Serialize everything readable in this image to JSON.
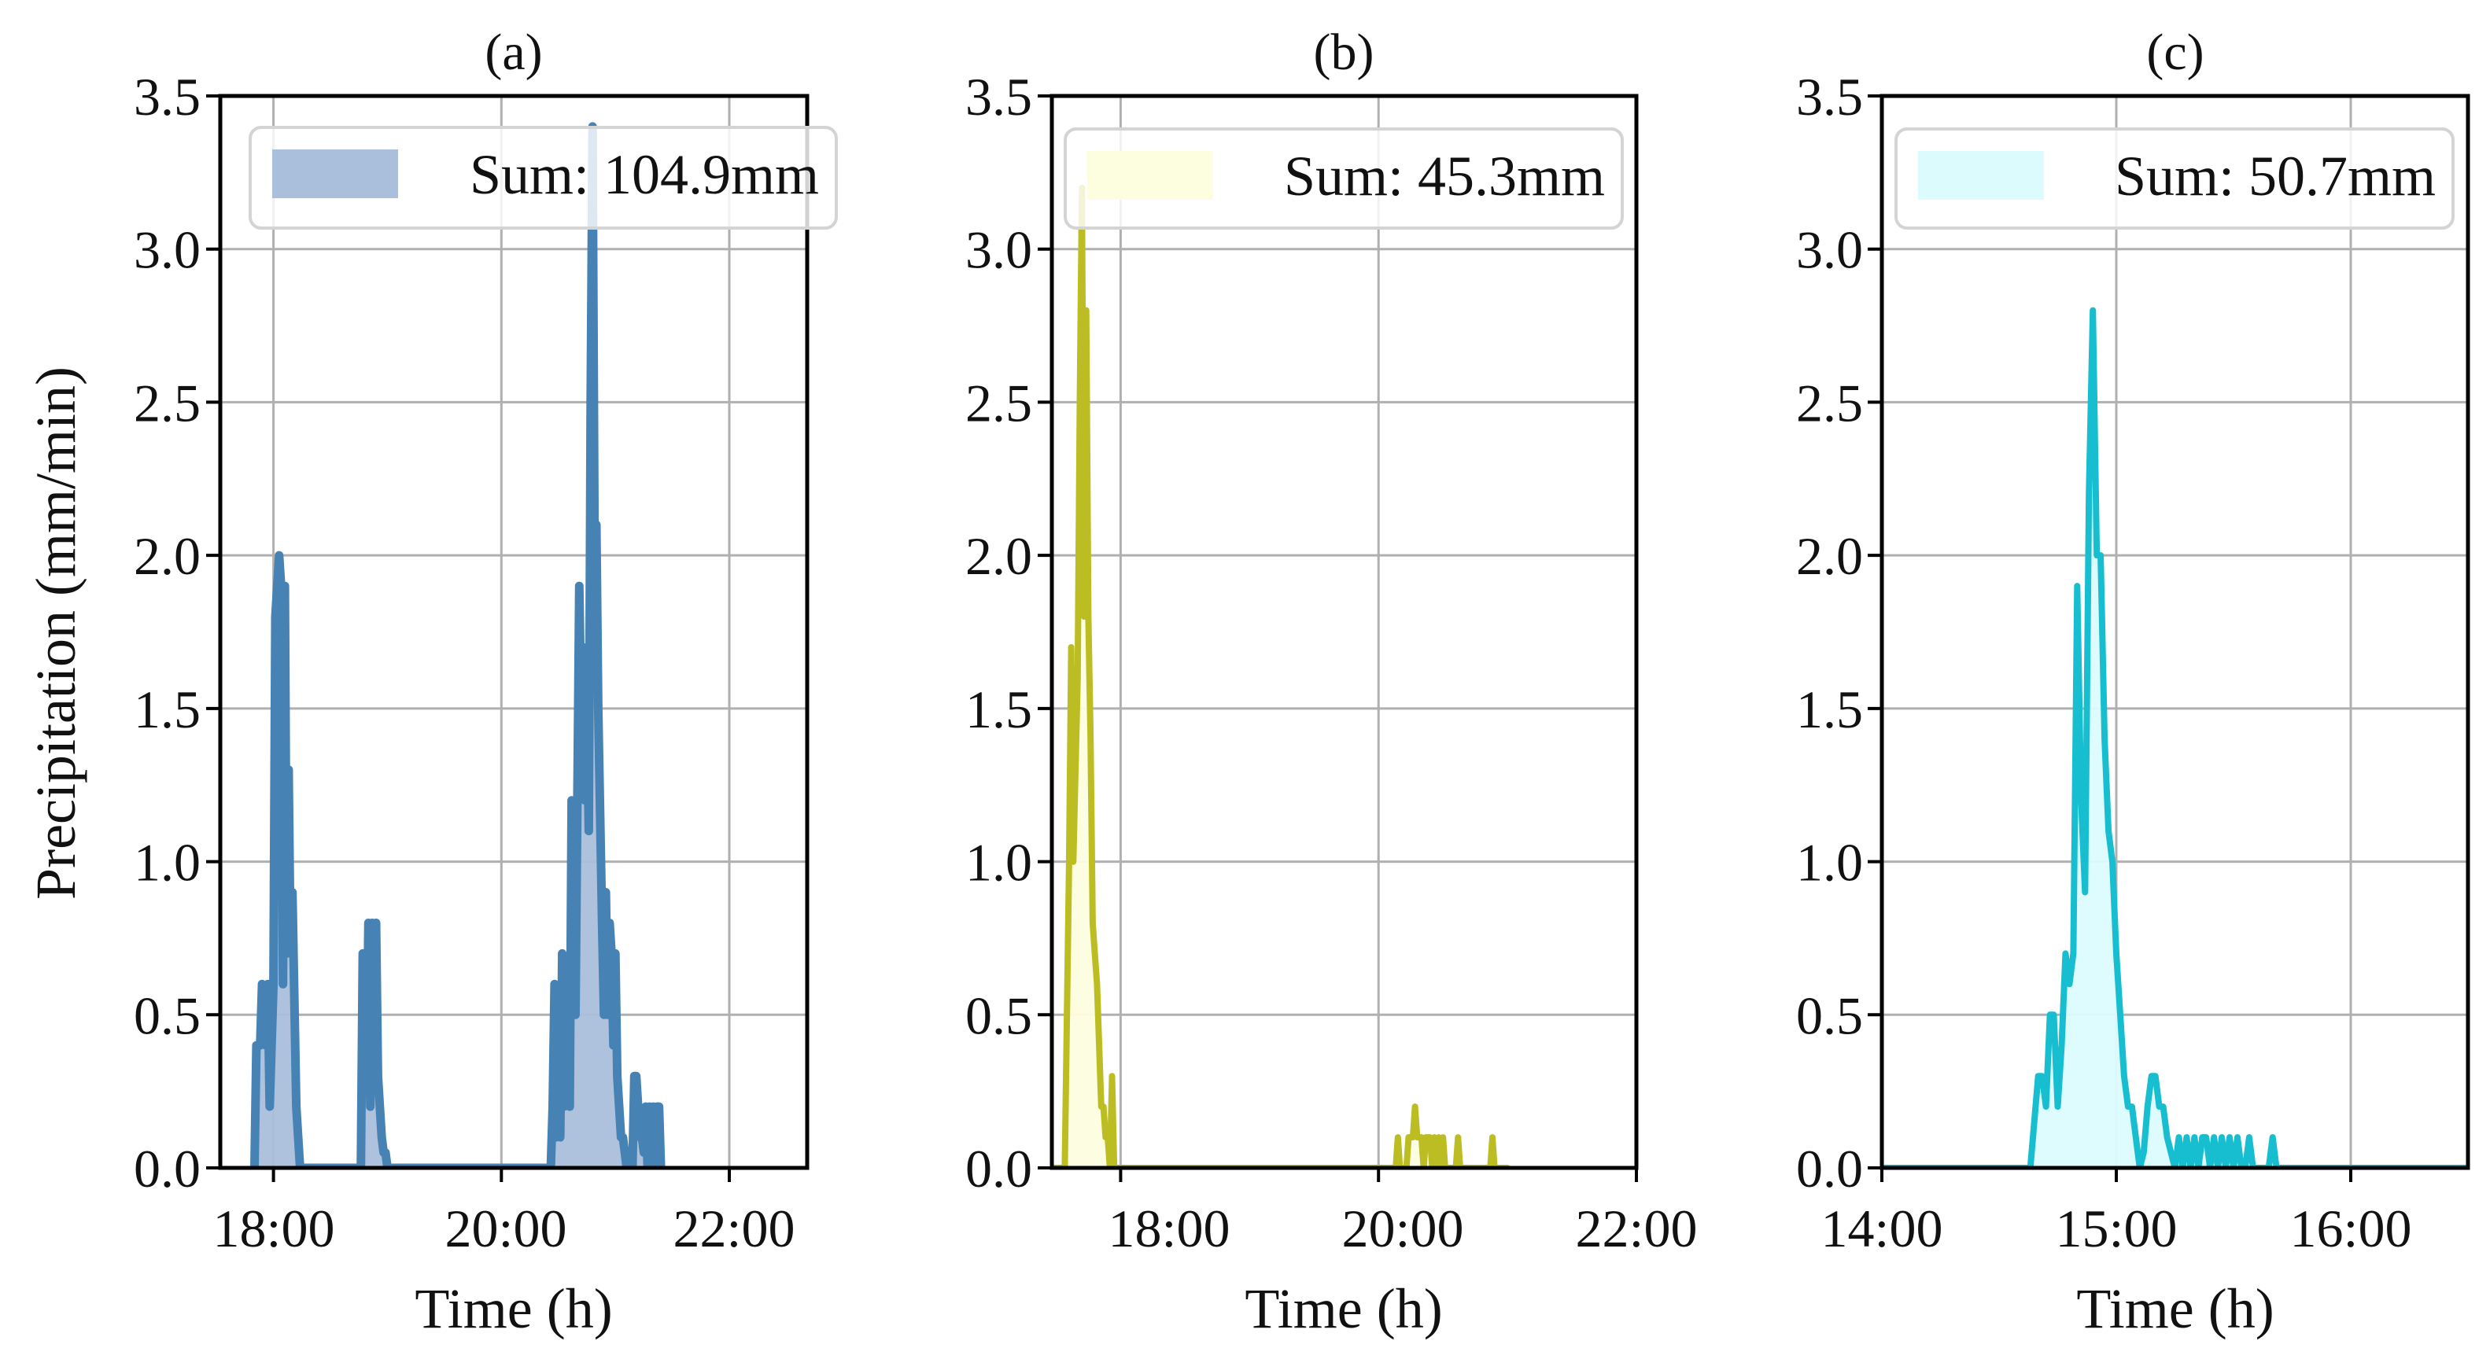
{
  "figure": {
    "y_axis_label": "Precipitation (mm/min)",
    "x_axis_label": "Time (h)",
    "y_ticks": [
      "0.0",
      "0.5",
      "1.0",
      "1.5",
      "2.0",
      "2.5",
      "3.0",
      "3.5"
    ]
  },
  "panels": [
    {
      "title": "(a)",
      "legend": "Sum: 104.9mm",
      "x_ticks": [
        "18:00",
        "20:00",
        "22:00"
      ]
    },
    {
      "title": "(b)",
      "legend": "Sum: 45.3mm",
      "x_ticks": [
        "18:00",
        "20:00",
        "22:00"
      ]
    },
    {
      "title": "(c)",
      "legend": "Sum: 50.7mm",
      "x_ticks": [
        "14:00",
        "15:00",
        "16:00"
      ]
    }
  ],
  "chart_data": [
    {
      "type": "area",
      "title": "(a)",
      "xlabel": "Time (h)",
      "ylabel": "Precipitation (mm/min)",
      "ylim": [
        0,
        3.5
      ],
      "xlim": [
        "17:32",
        "22:41"
      ],
      "x_ticks": [
        "18:00",
        "20:00",
        "22:00"
      ],
      "y_ticks": [
        0.0,
        0.5,
        1.0,
        1.5,
        2.0,
        2.5,
        3.0,
        3.5
      ],
      "grid": true,
      "legend": {
        "label": "Sum: 104.9mm",
        "position": "upper right"
      },
      "line_color": "#4682b4",
      "fill_color": "#aabfdc",
      "total_mm": 104.9,
      "series": [
        {
          "name": "Sum: 104.9mm",
          "x_minutes_from": "17:00",
          "points": [
            [
              50,
              0
            ],
            [
              51,
              0.4
            ],
            [
              53,
              0.4
            ],
            [
              54,
              0.6
            ],
            [
              56,
              0.4
            ],
            [
              57,
              0.6
            ],
            [
              58,
              0.2
            ],
            [
              60,
              0.6
            ],
            [
              61,
              1.8
            ],
            [
              62,
              1.9
            ],
            [
              63,
              2.0
            ],
            [
              64,
              1.9
            ],
            [
              65,
              0.6
            ],
            [
              66,
              1.9
            ],
            [
              67,
              0.7
            ],
            [
              68,
              1.3
            ],
            [
              69,
              0.7
            ],
            [
              70,
              0.9
            ],
            [
              72,
              0.2
            ],
            [
              73,
              0.1
            ],
            [
              74,
              0.0
            ],
            [
              75,
              0
            ],
            [
              106,
              0
            ],
            [
              107,
              0.7
            ],
            [
              108,
              0.7
            ],
            [
              109,
              0.3
            ],
            [
              110,
              0.8
            ],
            [
              111,
              0.2
            ],
            [
              112,
              0.8
            ],
            [
              113,
              0.3
            ],
            [
              114,
              0.8
            ],
            [
              115,
              0.3
            ],
            [
              116,
              0.2
            ],
            [
              117,
              0.1
            ],
            [
              118,
              0.05
            ],
            [
              119,
              0.05
            ],
            [
              120,
              0.0
            ],
            [
              122,
              0
            ],
            [
              206,
              0
            ],
            [
              207,
              0.2
            ],
            [
              208,
              0.6
            ],
            [
              209,
              0.1
            ],
            [
              210,
              0.5
            ],
            [
              211,
              0.1
            ],
            [
              212,
              0.7
            ],
            [
              213,
              0.2
            ],
            [
              215,
              0.4
            ],
            [
              216,
              0.2
            ],
            [
              217,
              1.2
            ],
            [
              218,
              0.6
            ],
            [
              219,
              0.5
            ],
            [
              221,
              1.9
            ],
            [
              222,
              1.5
            ],
            [
              223,
              1.7
            ],
            [
              224,
              1.2
            ],
            [
              225,
              1.5
            ],
            [
              226,
              1.1
            ],
            [
              227,
              2.5
            ],
            [
              228,
              3.4
            ],
            [
              229,
              2.1
            ],
            [
              230,
              2.1
            ],
            [
              231,
              1.5
            ],
            [
              233,
              0.8
            ],
            [
              234,
              0.5
            ],
            [
              235,
              0.9
            ],
            [
              236,
              0.5
            ],
            [
              237,
              0.8
            ],
            [
              238,
              0.7
            ],
            [
              239,
              0.4
            ],
            [
              240,
              0.7
            ],
            [
              241,
              0.3
            ],
            [
              242,
              0.2
            ],
            [
              243,
              0.1
            ],
            [
              244,
              0.1
            ],
            [
              245,
              0.05
            ],
            [
              246,
              0
            ],
            [
              249,
              0
            ],
            [
              250,
              0.3
            ],
            [
              251,
              0.3
            ],
            [
              252,
              0.2
            ],
            [
              253,
              0.1
            ],
            [
              254,
              0.1
            ],
            [
              255,
              0.05
            ],
            [
              256,
              0.2
            ],
            [
              257,
              0.0
            ],
            [
              258,
              0.2
            ],
            [
              259,
              0.05
            ],
            [
              260,
              0.2
            ],
            [
              261,
              0.0
            ],
            [
              262,
              0.2
            ],
            [
              263,
              0.2
            ],
            [
              264,
              0
            ]
          ]
        }
      ]
    },
    {
      "type": "area",
      "title": "(b)",
      "xlabel": "Time (h)",
      "ylabel": "",
      "ylim": [
        0,
        3.5
      ],
      "xlim": [
        "17:28",
        "22:00"
      ],
      "x_ticks": [
        "18:00",
        "20:00",
        "22:00"
      ],
      "y_ticks": [
        0.0,
        0.5,
        1.0,
        1.5,
        2.0,
        2.5,
        3.0,
        3.5
      ],
      "grid": true,
      "legend": {
        "label": "Sum: 45.3mm",
        "position": "upper right"
      },
      "line_color": "#bcbd22",
      "fill_color": "#fdfde0",
      "total_mm": 45.3,
      "series": [
        {
          "name": "Sum: 45.3mm",
          "x_minutes_from": "17:00",
          "points": [
            [
              0,
              0
            ],
            [
              34,
              0
            ],
            [
              36,
              1.0
            ],
            [
              37,
              1.7
            ],
            [
              38,
              1.0
            ],
            [
              40,
              1.6
            ],
            [
              41,
              2.5
            ],
            [
              42,
              3.2
            ],
            [
              43,
              1.8
            ],
            [
              44,
              2.8
            ],
            [
              45,
              1.8
            ],
            [
              46,
              1.4
            ],
            [
              47,
              0.8
            ],
            [
              48,
              0.7
            ],
            [
              49,
              0.6
            ],
            [
              50,
              0.4
            ],
            [
              51,
              0.2
            ],
            [
              52,
              0.2
            ],
            [
              53,
              0.1
            ],
            [
              54,
              0.1
            ],
            [
              55,
              0.0
            ],
            [
              56,
              0.3
            ],
            [
              57,
              0
            ],
            [
              188,
              0
            ],
            [
              189,
              0.1
            ],
            [
              190,
              0
            ],
            [
              193,
              0
            ],
            [
              194,
              0.1
            ],
            [
              196,
              0.1
            ],
            [
              197,
              0.2
            ],
            [
              198,
              0.1
            ],
            [
              200,
              0.1
            ],
            [
              201,
              0
            ],
            [
              202,
              0.1
            ],
            [
              204,
              0.1
            ],
            [
              205,
              0
            ],
            [
              206,
              0.1
            ],
            [
              207,
              0
            ],
            [
              208,
              0.1
            ],
            [
              209,
              0
            ],
            [
              210,
              0.1
            ],
            [
              211,
              0
            ],
            [
              216,
              0
            ],
            [
              217,
              0.1
            ],
            [
              218,
              0
            ],
            [
              232,
              0
            ],
            [
              233,
              0.1
            ],
            [
              234,
              0
            ],
            [
              240,
              0
            ]
          ]
        }
      ]
    },
    {
      "type": "area",
      "title": "(c)",
      "xlabel": "Time (h)",
      "ylabel": "",
      "ylim": [
        0,
        3.5
      ],
      "xlim": [
        "14:00",
        "16:32"
      ],
      "x_ticks": [
        "14:00",
        "15:00",
        "16:00"
      ],
      "y_ticks": [
        0.0,
        0.5,
        1.0,
        1.5,
        2.0,
        2.5,
        3.0,
        3.5
      ],
      "grid": true,
      "legend": {
        "label": "Sum: 50.7mm",
        "position": "upper right"
      },
      "line_color": "#17becf",
      "fill_color": "#dcfbfd",
      "total_mm": 50.7,
      "series": [
        {
          "name": "Sum: 50.7mm",
          "x_minutes_from": "14:00",
          "points": [
            [
              0,
              0
            ],
            [
              38,
              0
            ],
            [
              40,
              0.3
            ],
            [
              41,
              0.3
            ],
            [
              42,
              0.2
            ],
            [
              43,
              0.5
            ],
            [
              44,
              0.5
            ],
            [
              45,
              0.2
            ],
            [
              46,
              0.4
            ],
            [
              47,
              0.7
            ],
            [
              48,
              0.6
            ],
            [
              49,
              0.7
            ],
            [
              50,
              1.9
            ],
            [
              51,
              1.2
            ],
            [
              52,
              0.9
            ],
            [
              53,
              2.2
            ],
            [
              54,
              2.8
            ],
            [
              55,
              2.0
            ],
            [
              56,
              2.0
            ],
            [
              57,
              1.4
            ],
            [
              58,
              1.1
            ],
            [
              59,
              1.0
            ],
            [
              60,
              0.7
            ],
            [
              61,
              0.5
            ],
            [
              62,
              0.3
            ],
            [
              63,
              0.2
            ],
            [
              64,
              0.2
            ],
            [
              65,
              0.1
            ],
            [
              66,
              0.0
            ],
            [
              67,
              0.05
            ],
            [
              68,
              0.2
            ],
            [
              69,
              0.3
            ],
            [
              70,
              0.3
            ],
            [
              71,
              0.2
            ],
            [
              72,
              0.2
            ],
            [
              73,
              0.1
            ],
            [
              74,
              0.05
            ],
            [
              75,
              0.0
            ],
            [
              76,
              0.1
            ],
            [
              77,
              0.0
            ],
            [
              78,
              0.1
            ],
            [
              79,
              0.0
            ],
            [
              80,
              0.1
            ],
            [
              81,
              0.0
            ],
            [
              82,
              0.1
            ],
            [
              83,
              0.1
            ],
            [
              84,
              0.0
            ],
            [
              85,
              0.1
            ],
            [
              86,
              0.0
            ],
            [
              87,
              0.1
            ],
            [
              88,
              0.0
            ],
            [
              89,
              0.1
            ],
            [
              90,
              0.0
            ],
            [
              91,
              0.1
            ],
            [
              92,
              0.0
            ],
            [
              93,
              0.0
            ],
            [
              94,
              0.1
            ],
            [
              95,
              0.0
            ],
            [
              99,
              0
            ],
            [
              100,
              0.1
            ],
            [
              101,
              0
            ],
            [
              152,
              0
            ]
          ]
        }
      ]
    }
  ]
}
